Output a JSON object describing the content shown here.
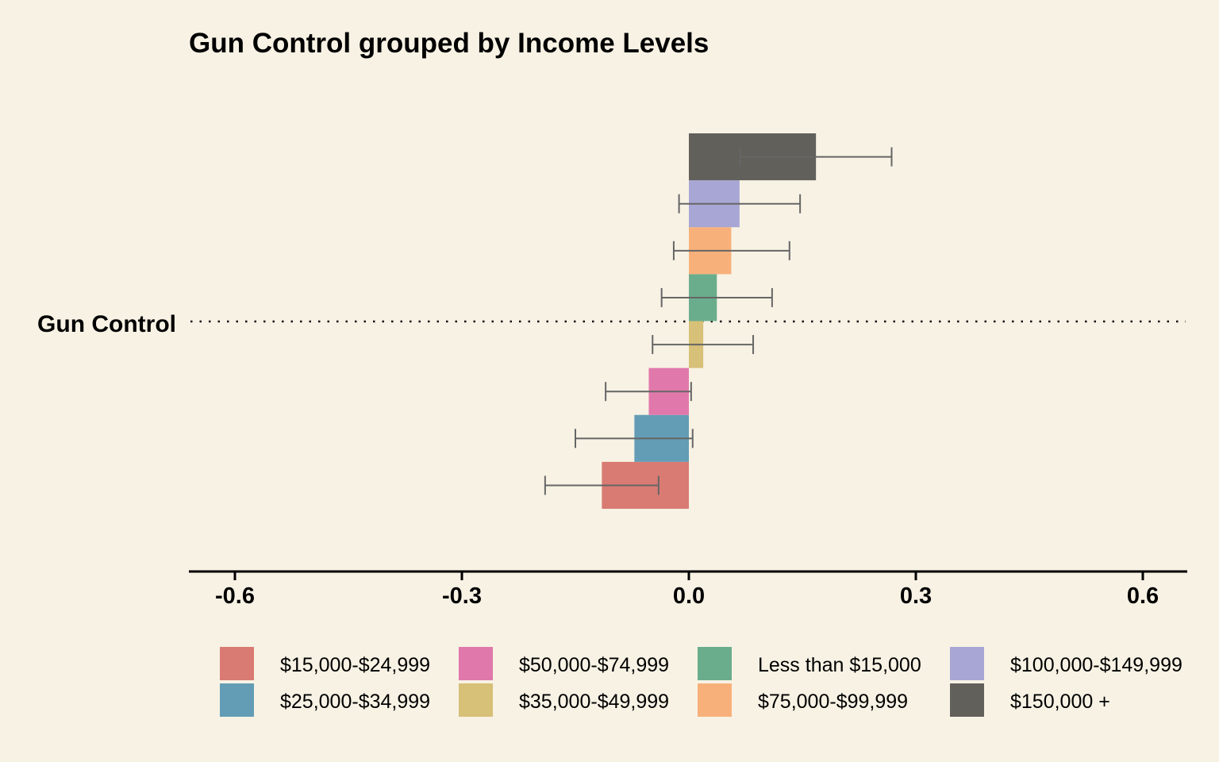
{
  "chart_data": {
    "type": "bar",
    "orientation": "horizontal",
    "title": "Gun Control grouped by Income Levels",
    "categories": [
      "Gun Control"
    ],
    "xlim": [
      -0.6,
      0.6
    ],
    "xticks": [
      "-0.6",
      "-0.3",
      "0.0",
      "0.3",
      "0.6"
    ],
    "xlabel": "",
    "ylabel": "",
    "grid": false,
    "legend_position": "bottom",
    "series": [
      {
        "name": "$15,000-$24,999",
        "value": -0.115,
        "ci": [
          -0.19,
          -0.04
        ],
        "color": "#d97b73"
      },
      {
        "name": "$25,000-$34,999",
        "value": -0.072,
        "ci": [
          -0.15,
          0.005
        ],
        "color": "#639db5"
      },
      {
        "name": "$50,000-$74,999",
        "value": -0.053,
        "ci": [
          -0.11,
          0.003
        ],
        "color": "#e078ab"
      },
      {
        "name": "$35,000-$49,999",
        "value": 0.019,
        "ci": [
          -0.048,
          0.085
        ],
        "color": "#d7c077"
      },
      {
        "name": "Less than $15,000",
        "value": 0.037,
        "ci": [
          -0.036,
          0.11
        ],
        "color": "#6aad8d"
      },
      {
        "name": "$75,000-$99,999",
        "value": 0.056,
        "ci": [
          -0.02,
          0.133
        ],
        "color": "#f8b07a"
      },
      {
        "name": "$100,000-$149,999",
        "value": 0.067,
        "ci": [
          -0.013,
          0.147
        ],
        "color": "#a7a6d4"
      },
      {
        "name": "$150,000 +",
        "value": 0.168,
        "ci": [
          0.068,
          0.268
        ],
        "color": "#61605b"
      }
    ],
    "legend_order": [
      "$15,000-$24,999",
      "$25,000-$34,999",
      "$50,000-$74,999",
      "$35,000-$49,999",
      "Less than $15,000",
      "$75,000-$99,999",
      "$100,000-$149,999",
      "$150,000 +"
    ]
  }
}
